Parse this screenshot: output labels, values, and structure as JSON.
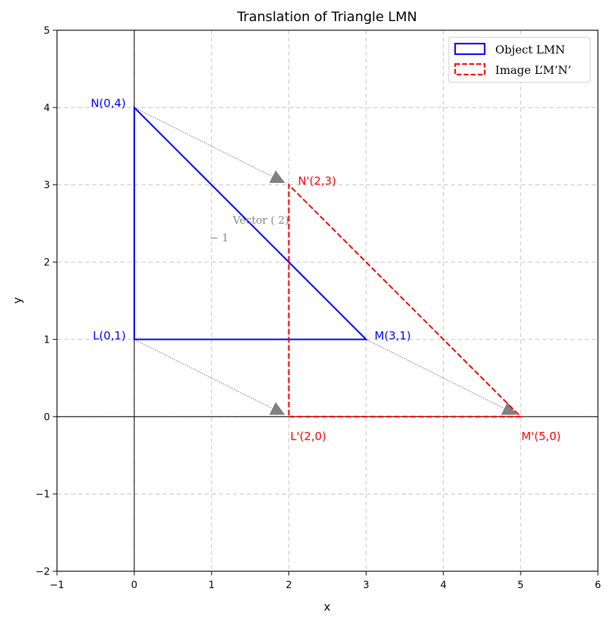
{
  "chart_data": {
    "type": "line",
    "title": "Translation of Triangle LMN",
    "xlabel": "x",
    "ylabel": "y",
    "xlim": [
      -1,
      6
    ],
    "ylim": [
      -2,
      5
    ],
    "xticks": [
      "−1",
      "0",
      "1",
      "2",
      "3",
      "4",
      "5",
      "6"
    ],
    "yticks": [
      "−2",
      "−1",
      "0",
      "1",
      "2",
      "3",
      "4",
      "5"
    ],
    "grid": true,
    "legend_position": "top-right",
    "series": [
      {
        "name": "Object LMN",
        "style": "solid",
        "color": "#0000ff",
        "points": [
          {
            "label": "L(0,1)",
            "x": 0,
            "y": 1
          },
          {
            "label": "M(3,1)",
            "x": 3,
            "y": 1
          },
          {
            "label": "N(0,4)",
            "x": 0,
            "y": 4
          }
        ]
      },
      {
        "name": "Image L’M’N’",
        "style": "dashed",
        "color": "#ff0000",
        "points": [
          {
            "label": "L'(2,0)",
            "x": 2,
            "y": 0
          },
          {
            "label": "M'(5,0)",
            "x": 5,
            "y": 0
          },
          {
            "label": "N'(2,3)",
            "x": 2,
            "y": 3
          }
        ]
      }
    ],
    "translation_arrows": [
      {
        "from": [
          0,
          1
        ],
        "to": [
          2,
          0
        ]
      },
      {
        "from": [
          3,
          1
        ],
        "to": [
          5,
          0
        ]
      },
      {
        "from": [
          0,
          4
        ],
        "to": [
          2,
          3
        ]
      }
    ],
    "annotation": {
      "top": "Vector ( 2)",
      "bottom": "− 1"
    },
    "colors": {
      "object": "#0000ff",
      "image": "#ff0000",
      "arrow": "#808080",
      "grid": "#cccccc"
    }
  }
}
